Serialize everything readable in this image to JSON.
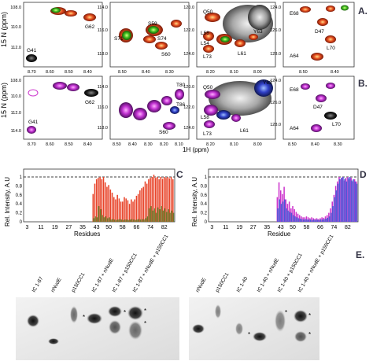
{
  "panel_a": {
    "letter": "A.",
    "y_axis_label": "15 N (ppm)",
    "spectra": [
      {
        "ticks_y": [
          "108.0",
          "110.0",
          "112.0"
        ],
        "ticks_x": [
          "8.70",
          "8.60",
          "8.50",
          "8.40"
        ],
        "labels": [
          "G41",
          "G62"
        ]
      },
      {
        "ticks_y": [
          "114.0",
          "116.0",
          "118.0"
        ],
        "ticks_x": [
          "8.50",
          "8.40",
          "8.30"
        ],
        "labels": [
          "S59",
          "S71",
          "S74",
          "S60"
        ]
      },
      {
        "ticks_y": [
          "120.0",
          "122.0",
          "124.0"
        ],
        "ticks_x": [
          "8.20",
          "8.10",
          "8.00"
        ],
        "labels": [
          "Q50",
          "Y63",
          "L58",
          "L54",
          "L73",
          "L61"
        ]
      },
      {
        "ticks_y": [
          "124.0",
          "126.0",
          "128.0"
        ],
        "ticks_x": [
          "8.50",
          "8.40"
        ],
        "labels": [
          "E68",
          "D47",
          "L70",
          "A64"
        ]
      }
    ]
  },
  "panel_b": {
    "letter": "B.",
    "y_axis_label": "15 N (ppm)",
    "x_axis_label": "1H (ppm)",
    "spectra": [
      {
        "ticks_y": [
          "108.0",
          "110.0",
          "112.0",
          "114.0"
        ],
        "ticks_x": [
          "8.70",
          "8.60",
          "8.50",
          "8.40"
        ],
        "labels": [
          "G41",
          "G62"
        ]
      },
      {
        "ticks_y": [
          "114.0",
          "116.0",
          "118.0"
        ],
        "ticks_x": [
          "8.50",
          "8.40",
          "8.30",
          "8.20",
          "8.10"
        ],
        "labels": [
          "T80",
          "T86",
          "S60"
        ]
      },
      {
        "ticks_y": [
          "120.0",
          "122.0",
          "124.0"
        ],
        "ticks_x": [
          "8.20",
          "8.10",
          "8.00"
        ],
        "labels": [
          "Q50",
          "Y63",
          "L58",
          "L73",
          "L61"
        ]
      },
      {
        "ticks_y": [
          "124.0",
          "126.0",
          "128.0"
        ],
        "ticks_x": [
          "8.50",
          "8.40",
          "8.30"
        ],
        "labels": [
          "E68",
          "D47",
          "L70",
          "A64"
        ]
      }
    ]
  },
  "chart_data": [
    {
      "type": "bar",
      "panel": "C",
      "ylabel": "Rel. Intensity, A.U",
      "xlabel": "Residues",
      "ylim": [
        0,
        1
      ],
      "yticks": [
        "0",
        "0.2",
        "0.4",
        "0.6",
        "0.8",
        "1"
      ],
      "xticks": [
        "3",
        "11",
        "19",
        "27",
        "35",
        "43",
        "50",
        "58",
        "66",
        "74",
        "82"
      ],
      "x": [
        41,
        42,
        43,
        44,
        45,
        46,
        47,
        48,
        49,
        50,
        51,
        52,
        53,
        54,
        55,
        56,
        57,
        58,
        59,
        60,
        61,
        62,
        63,
        64,
        65,
        66,
        67,
        68,
        69,
        70,
        71,
        72,
        73,
        74,
        75,
        76,
        77,
        78,
        79,
        80,
        81,
        82,
        83,
        84,
        85,
        86,
        87
      ],
      "series": [
        {
          "name": "",
          "color": "#e8442a",
          "values": [
            0.62,
            0.85,
            0.95,
            0.98,
            1.0,
            0.95,
            1.0,
            0.88,
            0.78,
            0.82,
            0.72,
            0.65,
            0.55,
            0.5,
            0.6,
            0.52,
            0.45,
            0.45,
            0.55,
            0.52,
            0.48,
            0.4,
            0.5,
            0.45,
            0.5,
            0.58,
            0.62,
            0.7,
            0.75,
            0.78,
            0.9,
            0.85,
            0.95,
            0.98,
            1.0,
            1.05,
            0.98,
            1.0,
            0.95,
            1.0,
            0.96,
            1.0,
            0.98,
            1.0,
            0.97,
            1.0,
            0.95
          ]
        },
        {
          "name": "",
          "color": "#6b7a2a",
          "values": [
            0.08,
            0.12,
            0.1,
            0.35,
            0.28,
            0.15,
            0.1,
            0.12,
            0.08,
            0.1,
            0.05,
            0.06,
            0.05,
            0.04,
            0.05,
            0.06,
            0.05,
            0.04,
            0.05,
            0.05,
            0.04,
            0.05,
            0.06,
            0.05,
            0.04,
            0.05,
            0.06,
            0.05,
            0.06,
            0.05,
            0.08,
            0.12,
            0.3,
            0.35,
            0.25,
            0.3,
            0.2,
            0.32,
            0.28,
            0.35,
            0.25,
            0.3,
            0.22,
            0.28,
            0.2,
            0.25,
            0.2
          ]
        }
      ]
    },
    {
      "type": "bar",
      "panel": "D",
      "ylabel": "Rel. Intensity, A.U",
      "xlabel": "Residue",
      "ylim": [
        0,
        1
      ],
      "yticks": [
        "0",
        "0.2",
        "0.4",
        "0.6",
        "0.8",
        "1"
      ],
      "xticks": [
        "3",
        "11",
        "19",
        "27",
        "35",
        "43",
        "50",
        "58",
        "66",
        "74",
        "82"
      ],
      "x": [
        41,
        42,
        43,
        44,
        45,
        46,
        47,
        48,
        49,
        50,
        51,
        52,
        53,
        54,
        55,
        56,
        57,
        58,
        59,
        60,
        61,
        62,
        63,
        64,
        65,
        66,
        67,
        68,
        69,
        70,
        71,
        72,
        73,
        74,
        75,
        76,
        77,
        78,
        79,
        80,
        81,
        82,
        83,
        84,
        85,
        86,
        87
      ],
      "series": [
        {
          "name": "",
          "color": "#cc33cc",
          "values": [
            0.55,
            0.88,
            0.7,
            0.62,
            0.78,
            0.5,
            0.4,
            0.45,
            0.3,
            0.35,
            0.28,
            0.22,
            0.18,
            0.15,
            0.12,
            0.1,
            0.1,
            0.12,
            0.1,
            0.08,
            0.1,
            0.08,
            0.07,
            0.08,
            0.06,
            0.08,
            0.1,
            0.09,
            0.12,
            0.15,
            0.2,
            0.3,
            0.45,
            0.6,
            0.8,
            0.9,
            1.0,
            0.95,
            1.0,
            0.92,
            0.98,
            1.0,
            0.95,
            0.98,
            0.9,
            0.95,
            0.9
          ]
        },
        {
          "name": "",
          "color": "#4a5ad8",
          "values": [
            0.3,
            0.5,
            0.4,
            0.45,
            0.5,
            0.3,
            0.25,
            0.22,
            0.2,
            0.15,
            0.12,
            0.1,
            0.08,
            0.07,
            0.06,
            0.05,
            0.06,
            0.05,
            0.05,
            0.05,
            0.04,
            0.05,
            0.04,
            0.05,
            0.04,
            0.05,
            0.05,
            0.06,
            0.07,
            0.09,
            0.12,
            0.2,
            0.35,
            0.55,
            0.7,
            0.85,
            0.95,
            0.98,
            1.0,
            0.96,
            0.9,
            0.98,
            1.0,
            0.92,
            0.95,
            0.9,
            0.85
          ]
        }
      ]
    }
  ],
  "panel_e": {
    "letter": "E.",
    "gel1_lanes": [
      "IC 1-87",
      "nNudE",
      "p150CC1",
      "IC 1-87 + nNudE",
      "IC 1-87 + p150CC1",
      "IC 1-87 + nNudE + p150CC1"
    ],
    "gel2_lanes": [
      "nNudE",
      "p150CC1",
      "IC 1-40",
      "IC 1-40 + nNudE",
      "IC 1-40 + p150CC1",
      "IC 1-40 + nNudE + p150CC1"
    ],
    "star": "*"
  }
}
